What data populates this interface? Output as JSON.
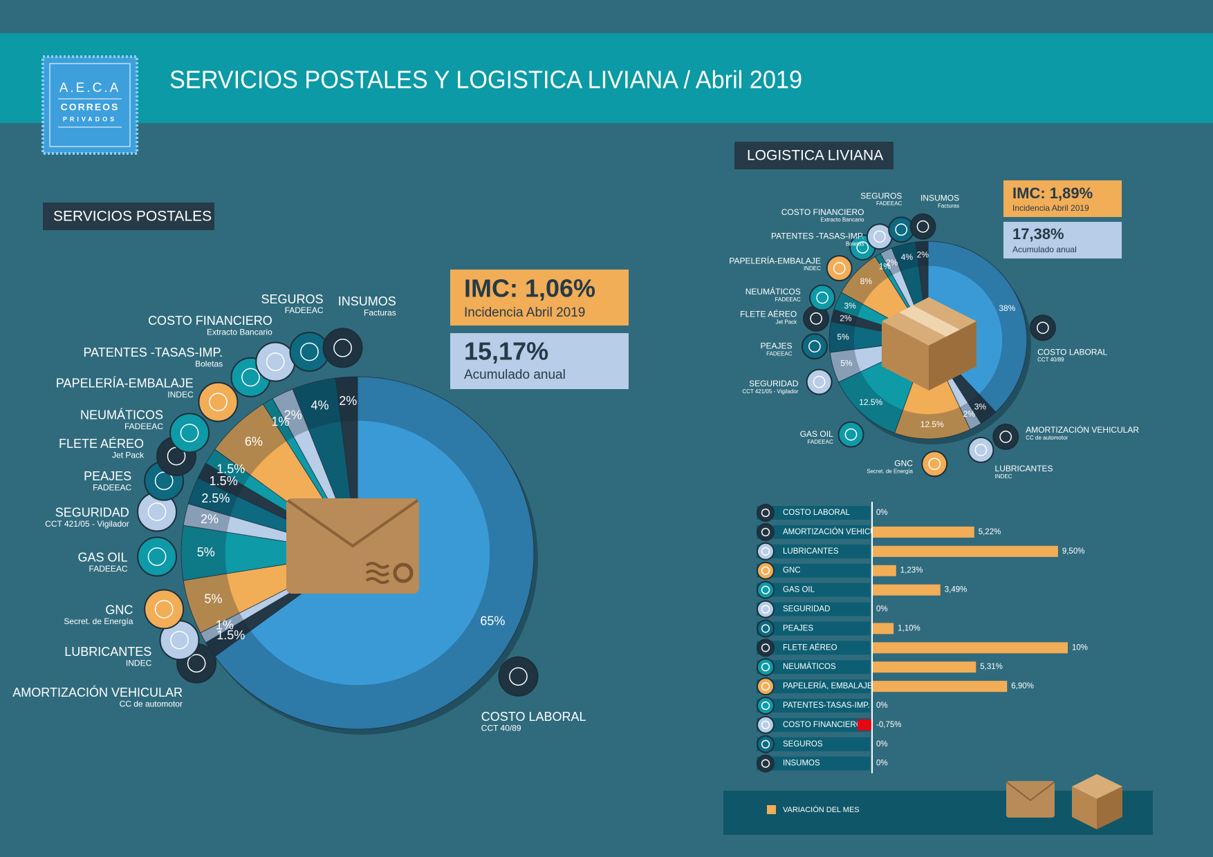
{
  "header": {
    "title": "SERVICIOS POSTALES Y LOGISTICA LIVIANA  / Abril 2019"
  },
  "logo": {
    "line1": "A.E.C.A",
    "line2": "CORREOS",
    "line3": "PRIVADOS"
  },
  "postal_summary": {
    "imc": "IMC: 1,06%",
    "imc_note": "Incidencia Abril 2019",
    "accumulated": "15,17%",
    "accumulated_note": "Acumulado anual"
  },
  "logistics_summary": {
    "imc": "IMC: 1,89%",
    "imc_note": "Incidencia Abril 2019",
    "accumulated": "17,38%",
    "accumulated_note": "Acumulado anual"
  },
  "chart_data": [
    {
      "type": "pie",
      "title": "SERVICIOS POSTALES",
      "categories": [
        "COSTO LABORAL",
        "AMORTIZACIÓN VEHICULAR",
        "LUBRICANTES",
        "GNC",
        "GAS OIL",
        "SEGURIDAD",
        "PEAJES",
        "FLETE AÉREO",
        "NEUMÁTICOS",
        "PAPELERÍA-EMBALAJE",
        "PATENTES -TASAS-IMP.",
        "COSTO FINANCIERO",
        "SEGUROS",
        "INSUMOS"
      ],
      "sources": [
        "CCT 40/89",
        "CC de automotor",
        "INDEC",
        "Secret. de Energía",
        "FADEEAC",
        "CCT 421/05 - Vigilador",
        "FADEEAC",
        "Jet Pack",
        "FADEEAC",
        "INDEC",
        "Boletas",
        "Extracto Bancario",
        "FADEEAC",
        "Facturas"
      ],
      "values": [
        65,
        1.5,
        1,
        5,
        5,
        2,
        2.5,
        1.5,
        1.5,
        6,
        1,
        2,
        4,
        2
      ],
      "value_labels": [
        "65%",
        "1.5%",
        "1%",
        "5%",
        "5%",
        "2%",
        "2.5%",
        "1.5%",
        "1.5%",
        "6%",
        "1%",
        "2%",
        "4%",
        "2%"
      ],
      "colors": [
        "#3a9ad5",
        "#243846",
        "#b7cde8",
        "#f2ad57",
        "#0e9aa7",
        "#b7cde8",
        "#0d6a80",
        "#243846",
        "#0e9aa7",
        "#f2ad57",
        "#0e9aa7",
        "#b7cde8",
        "#0d5e72",
        "#243846"
      ]
    },
    {
      "type": "pie",
      "title": "LOGISTICA LIVIANA",
      "categories": [
        "COSTO LABORAL",
        "AMORTIZACIÓN VEHICULAR",
        "LUBRICANTES",
        "GNC",
        "GAS OIL",
        "SEGURIDAD",
        "PEAJES",
        "FLETE AÉREO",
        "NEUMÁTICOS",
        "PAPELERÍA-EMBALAJE",
        "PATENTES -TASAS-IMP.",
        "COSTO FINANCIERO",
        "SEGUROS",
        "INSUMOS"
      ],
      "sources": [
        "CCT 40/89",
        "CC de automotor",
        "INDEC",
        "Secret. de Energía",
        "FADEEAC",
        "CCT 421/05 - Vigilador",
        "FADEEAC",
        "Jet Pack",
        "FADEEAC",
        "INDEC",
        "Boletas",
        "Extracto Bancario",
        "FADEEAC",
        "Facturas"
      ],
      "values": [
        38,
        3,
        2,
        12.5,
        12.5,
        5,
        5,
        2,
        3,
        8,
        1,
        2,
        4,
        2
      ],
      "value_labels": [
        "38%",
        "3%",
        "2%",
        "12.5%",
        "12.5%",
        "5%",
        "5%",
        "2%",
        "3%",
        "8%",
        "1%",
        "2%",
        "4%",
        "2%"
      ],
      "colors": [
        "#3a9ad5",
        "#243846",
        "#b7cde8",
        "#f2ad57",
        "#0e9aa7",
        "#b7cde8",
        "#0d6a80",
        "#243846",
        "#0e9aa7",
        "#f2ad57",
        "#0e9aa7",
        "#b7cde8",
        "#0d5e72",
        "#243846"
      ]
    },
    {
      "type": "bar",
      "orientation": "horizontal",
      "categories": [
        "COSTO LABORAL",
        "AMORTIZACIÓN VEHICULAR",
        "LUBRICANTES",
        "GNC",
        "GAS OIL",
        "SEGURIDAD",
        "PEAJES",
        "FLETE AÉREO",
        "NEUMÁTICOS",
        "PAPELERÍA, EMBALAJE",
        "PATENTES-TASAS-IMP.",
        "COSTO FINANCIERO",
        "SEGUROS",
        "INSUMOS"
      ],
      "values": [
        0,
        5.22,
        9.5,
        1.23,
        3.49,
        0,
        1.1,
        10,
        5.31,
        6.9,
        0,
        -0.75,
        0,
        0
      ],
      "value_labels": [
        "0%",
        "5,22%",
        "9,50%",
        "1,23%",
        "3,49%",
        "0%",
        "1,10%",
        "10%",
        "5,31%",
        "6,90%",
        "0%",
        "-0,75%",
        "0%",
        "0%"
      ],
      "color": "#f2ad57",
      "negative_color": "#e30613",
      "xlim": [
        0,
        10
      ],
      "legend": "VARIACIÓN DEL MES"
    }
  ]
}
